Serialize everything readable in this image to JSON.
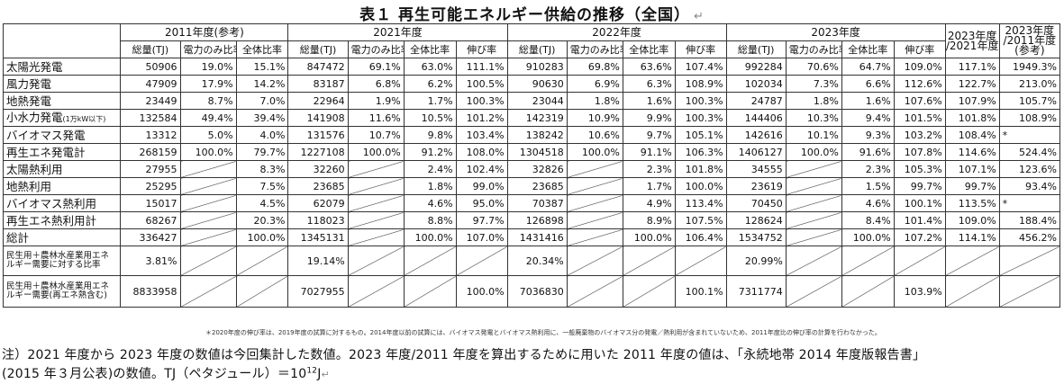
{
  "title": "表１ 再生可能エネルギー供給の推移（全国）",
  "return_mark": "↵",
  "headers": {
    "years": [
      "2011年度(参考)",
      "2021年度",
      "2022年度",
      "2023年度"
    ],
    "ratio1": "2023年度 /2021年度",
    "ratio2": "2023年度 /2011年度 (参考)",
    "total_tj": "総量(TJ)",
    "elec_ratio": "電力のみ比率",
    "all_ratio": "全体比率",
    "growth": "伸び率"
  },
  "rows": [
    {
      "label": "太陽光発電",
      "c": [
        "50906",
        "19.0%",
        "15.1%",
        "847472",
        "69.1%",
        "63.0%",
        "111.1%",
        "910283",
        "69.8%",
        "63.6%",
        "107.4%",
        "992284",
        "70.6%",
        "64.7%",
        "109.0%",
        "117.1%",
        "1949.3%"
      ]
    },
    {
      "label": "風力発電",
      "c": [
        "47909",
        "17.9%",
        "14.2%",
        "83187",
        "6.8%",
        "6.2%",
        "100.5%",
        "90630",
        "6.9%",
        "6.3%",
        "108.9%",
        "102034",
        "7.3%",
        "6.6%",
        "112.6%",
        "122.7%",
        "213.0%"
      ]
    },
    {
      "label": "地熱発電",
      "c": [
        "23449",
        "8.7%",
        "7.0%",
        "22964",
        "1.9%",
        "1.7%",
        "100.3%",
        "23044",
        "1.8%",
        "1.6%",
        "100.3%",
        "24787",
        "1.8%",
        "1.6%",
        "107.6%",
        "107.9%",
        "105.7%"
      ]
    },
    {
      "label": "小水力発電",
      "label_sub": "(1万kW以下)",
      "c": [
        "132584",
        "49.4%",
        "39.4%",
        "141908",
        "11.6%",
        "10.5%",
        "101.2%",
        "142319",
        "10.9%",
        "9.9%",
        "100.3%",
        "144406",
        "10.3%",
        "9.4%",
        "101.5%",
        "101.8%",
        "108.9%"
      ]
    },
    {
      "label": "バイオマス発電",
      "c": [
        "13312",
        "5.0%",
        "4.0%",
        "131576",
        "10.7%",
        "9.8%",
        "103.4%",
        "138242",
        "10.6%",
        "9.7%",
        "105.1%",
        "142616",
        "10.1%",
        "9.3%",
        "103.2%",
        "108.4%",
        "*"
      ]
    },
    {
      "label": "再生エネ発電計",
      "c": [
        "268159",
        "100.0%",
        "79.7%",
        "1227108",
        "100.0%",
        "91.2%",
        "108.0%",
        "1304518",
        "100.0%",
        "91.1%",
        "106.3%",
        "1406127",
        "100.0%",
        "91.6%",
        "107.8%",
        "114.6%",
        "524.4%"
      ]
    },
    {
      "label": "太陽熱利用",
      "c": [
        "27955",
        "",
        "8.3%",
        "32260",
        "",
        "2.4%",
        "102.4%",
        "32826",
        "",
        "2.3%",
        "101.8%",
        "34555",
        "",
        "2.3%",
        "105.3%",
        "107.1%",
        "123.6%"
      ]
    },
    {
      "label": "地熱利用",
      "c": [
        "25295",
        "",
        "7.5%",
        "23685",
        "",
        "1.8%",
        "99.0%",
        "23685",
        "",
        "1.7%",
        "100.0%",
        "23619",
        "",
        "1.5%",
        "99.7%",
        "99.7%",
        "93.4%"
      ]
    },
    {
      "label": "バイオマス熱利用",
      "c": [
        "15017",
        "",
        "4.5%",
        "62079",
        "",
        "4.6%",
        "95.0%",
        "70387",
        "",
        "4.9%",
        "113.4%",
        "70450",
        "",
        "4.6%",
        "100.1%",
        "113.5%",
        "*"
      ]
    },
    {
      "label": "再生エネ熱利用計",
      "c": [
        "68267",
        "",
        "20.3%",
        "118023",
        "",
        "8.8%",
        "97.7%",
        "126898",
        "",
        "8.9%",
        "107.5%",
        "128624",
        "",
        "8.4%",
        "101.4%",
        "109.0%",
        "188.4%"
      ]
    },
    {
      "label": "総計",
      "c": [
        "336427",
        "",
        "100.0%",
        "1345131",
        "",
        "100.0%",
        "107.0%",
        "1431416",
        "",
        "100.0%",
        "106.4%",
        "1534752",
        "",
        "100.0%",
        "107.2%",
        "114.1%",
        "456.2%"
      ]
    },
    {
      "label": "民生用＋農林水産業用エネルギー需要に対する比率",
      "c": [
        "3.81%",
        "",
        "",
        "19.14%",
        "",
        "",
        "",
        "20.34%",
        "",
        "",
        "",
        "20.99%",
        "",
        "",
        "",
        "",
        ""
      ]
    },
    {
      "label": "民生用＋農林水産業用エネルギー需要(再エネ熱含む)",
      "c": [
        "8833958",
        "",
        "",
        "7027955",
        "",
        "",
        "100.0%",
        "7036830",
        "",
        "",
        "100.1%",
        "7311774",
        "",
        "",
        "103.9%",
        "",
        ""
      ]
    }
  ],
  "footnote": "＊2020年度の伸び率は、2019年度の試算に対するもの。2014年度以前の試算には、バイオマス発電とバイオマス熱利用に、一般廃棄物のバイオマス分の発電／熱利用が含まれていないため、2011年度比の伸び率の計算を行わなかった。",
  "note1": "注）2021 年度から 2023 年度の数値は今回集計した数値。2023 年度/2011 年度を算出するために用いた 2011 年度の値は、「永続地帯 2014 年度版報告書」",
  "note2_a": "(2015 年３月公表)の数値。TJ（ペタジュール）＝10",
  "note2_exp": "12",
  "note2_b": "J"
}
